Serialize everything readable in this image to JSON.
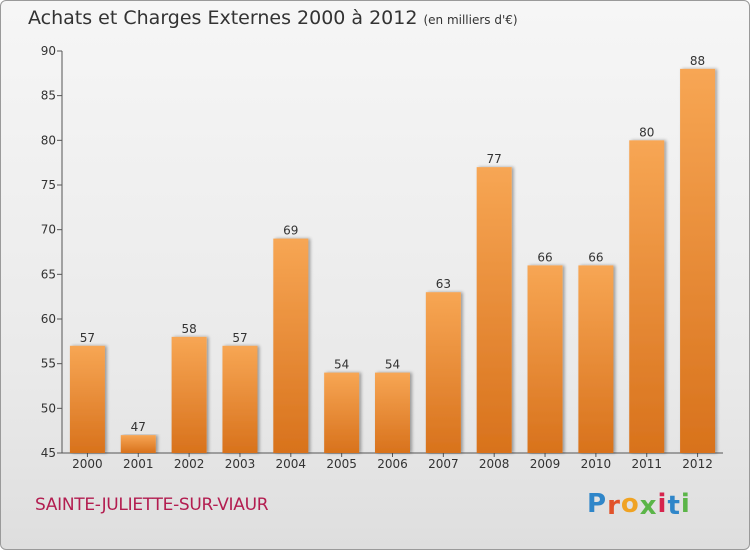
{
  "title": "Achats et Charges Externes 2000 à 2012",
  "unit_note": "(en milliers d'€)",
  "commune": "SAINTE-JULIETTE-SUR-VIAUR",
  "logo": {
    "letters": [
      "P",
      "r",
      "o",
      "x",
      "i",
      "t",
      "i"
    ],
    "colors": [
      "#2f86c9",
      "#e1532b",
      "#f0a323",
      "#5bb548",
      "#d6244d",
      "#2f86c9",
      "#5bb548"
    ]
  },
  "colors": {
    "bar_top": "#f7a654",
    "bar_bottom": "#d8721c",
    "title": "#333333",
    "commune": "#b31d50"
  },
  "chart_data": {
    "type": "bar",
    "title": "Achats et Charges Externes 2000 à 2012",
    "subtitle": "(en milliers d'€)",
    "xlabel": "",
    "ylabel": "",
    "categories": [
      "2000",
      "2001",
      "2002",
      "2003",
      "2004",
      "2005",
      "2006",
      "2007",
      "2008",
      "2009",
      "2010",
      "2011",
      "2012"
    ],
    "values": [
      57,
      47,
      58,
      57,
      69,
      54,
      54,
      63,
      77,
      66,
      66,
      80,
      88
    ],
    "ylim": [
      45,
      90
    ],
    "yticks": [
      45,
      50,
      55,
      60,
      65,
      70,
      75,
      80,
      85,
      90
    ],
    "grid": false,
    "data_labels": true
  }
}
